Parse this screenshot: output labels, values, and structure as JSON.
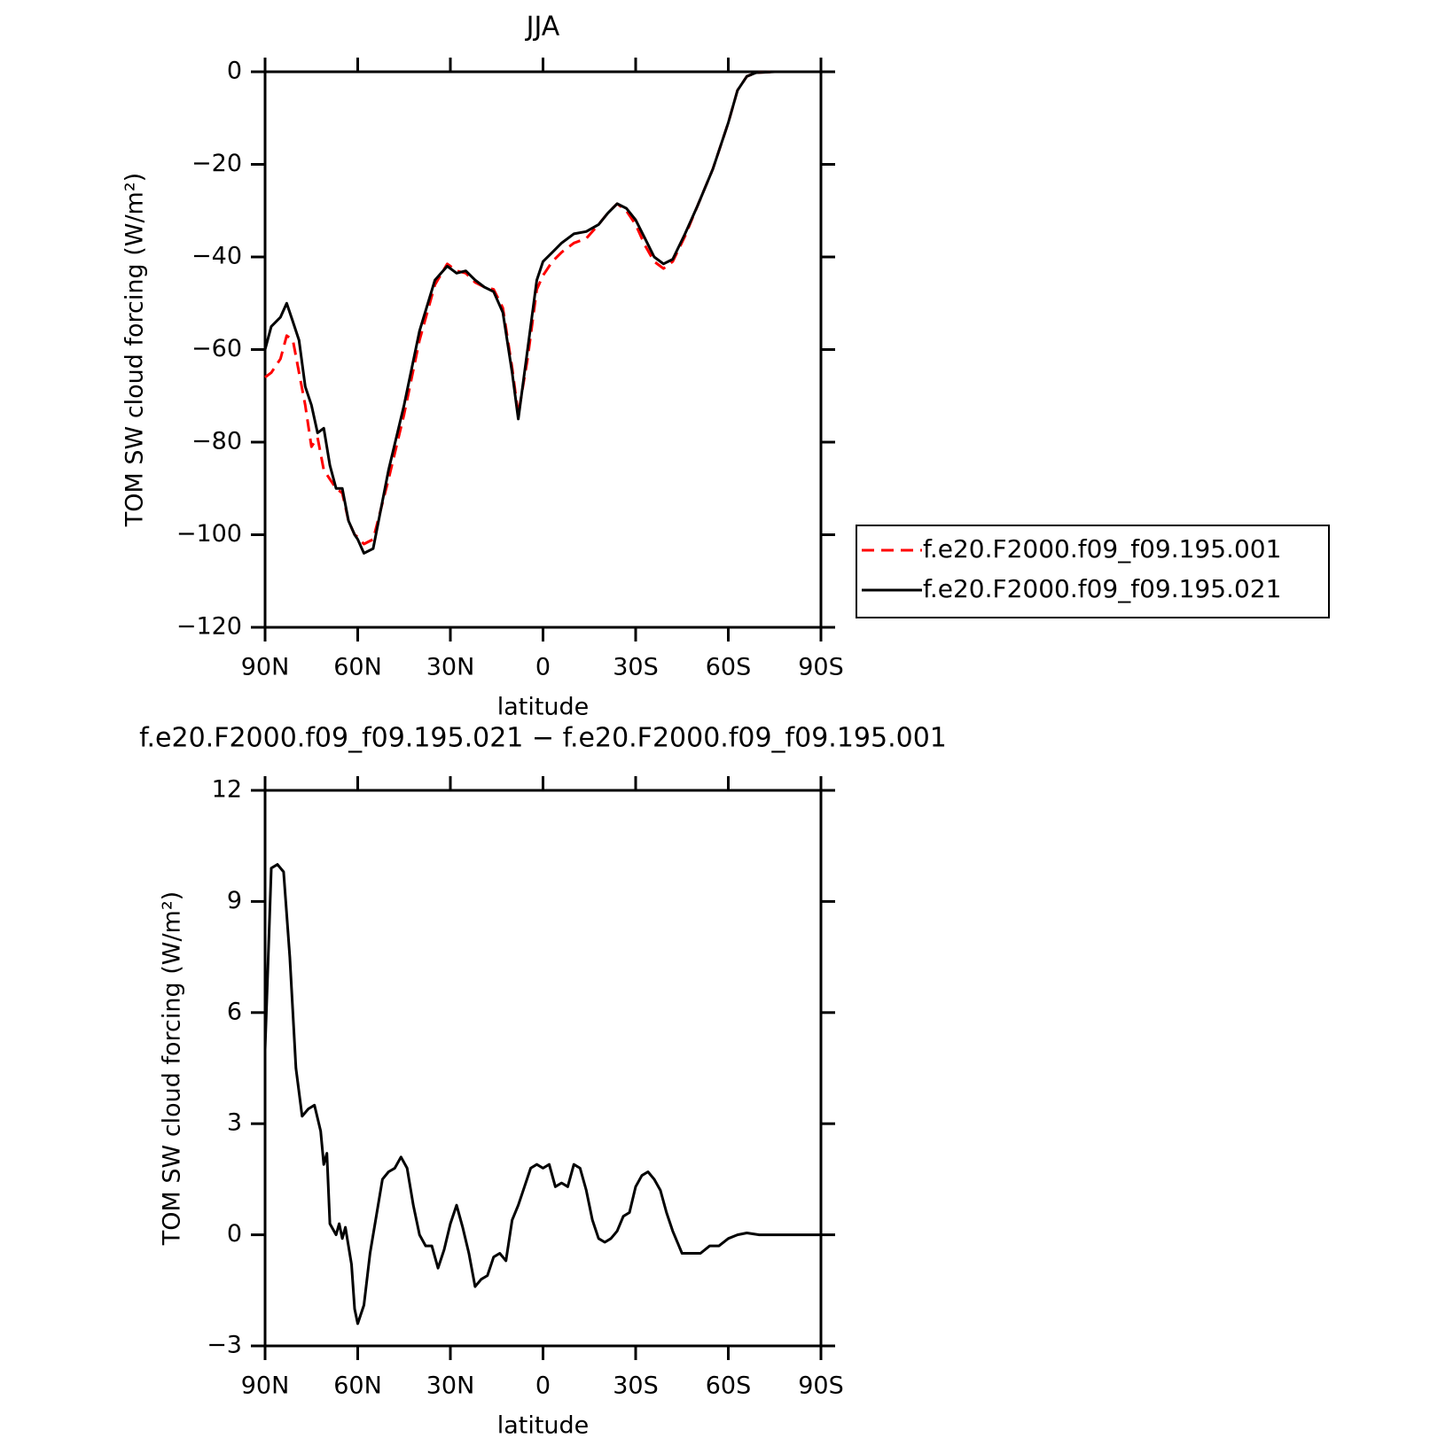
{
  "chart_data": [
    {
      "type": "line",
      "title": "JJA",
      "xlabel": "latitude",
      "ylabel": "TOM SW cloud forcing (W/m²)",
      "x": [
        90,
        88,
        85,
        83,
        81,
        79,
        77,
        75,
        73,
        71,
        69,
        67,
        65,
        63,
        61,
        60,
        58,
        55,
        50,
        45,
        40,
        35,
        31,
        28,
        25,
        22,
        19,
        16,
        13,
        10,
        8,
        5,
        2,
        0,
        -3,
        -6,
        -10,
        -14,
        -18,
        -21,
        -24,
        -27,
        -30,
        -33,
        -36,
        -39,
        -42,
        -46,
        -50,
        -55,
        -60,
        -63,
        -66,
        -69,
        -75,
        -80,
        -85,
        -90
      ],
      "series": [
        {
          "name": "f.e20.F2000.f09_f09.195.001",
          "color": "#ff0000",
          "linestyle": "dashed",
          "values": [
            -66,
            -65,
            -62,
            -57,
            -58,
            -65,
            -72,
            -81,
            -79,
            -86,
            -88,
            -90,
            -91,
            -97,
            -100,
            -100.5,
            -102,
            -101,
            -88,
            -74,
            -58,
            -46,
            -41.5,
            -43,
            -43.5,
            -45.5,
            -46.5,
            -47,
            -51,
            -64,
            -74,
            -62,
            -47,
            -44,
            -41,
            -39,
            -37,
            -36,
            -33,
            -30.5,
            -28.5,
            -30,
            -33,
            -37.5,
            -41,
            -42.5,
            -41,
            -35.5,
            -29,
            -21,
            -11,
            -4,
            -1,
            -0.2,
            0,
            0,
            0,
            0
          ]
        },
        {
          "name": "f.e20.F2000.f09_f09.195.021",
          "color": "#000000",
          "linestyle": "solid",
          "values": [
            -60,
            -55,
            -53,
            -50,
            -54,
            -58,
            -68,
            -72,
            -78,
            -77,
            -85,
            -90,
            -90,
            -97,
            -100,
            -101,
            -104,
            -103,
            -86,
            -72,
            -56,
            -45,
            -42,
            -43.5,
            -43,
            -45,
            -46.5,
            -47.5,
            -52,
            -65,
            -75,
            -60,
            -45,
            -41,
            -39,
            -37,
            -35,
            -34.5,
            -33,
            -30.5,
            -28.5,
            -29.5,
            -32,
            -36,
            -40,
            -41.5,
            -40.5,
            -35,
            -29,
            -21,
            -11,
            -4,
            -1,
            -0.2,
            0,
            0,
            0,
            0
          ]
        }
      ],
      "xlim": [
        90,
        -90
      ],
      "xticks": [
        {
          "value": 90,
          "label": "90N"
        },
        {
          "value": 60,
          "label": "60N"
        },
        {
          "value": 30,
          "label": "30N"
        },
        0,
        {
          "value": -30,
          "label": "30S"
        },
        {
          "value": -60,
          "label": "60S"
        },
        {
          "value": -90,
          "label": "90S"
        }
      ],
      "ylim": [
        -120,
        0
      ],
      "yticks": [
        {
          "value": -120,
          "label": "−120"
        },
        {
          "value": -100,
          "label": "−100"
        },
        {
          "value": -80,
          "label": "−80"
        },
        {
          "value": -60,
          "label": "−60"
        },
        {
          "value": -40,
          "label": "−40"
        },
        {
          "value": -20,
          "label": "−20"
        },
        0
      ],
      "legend": "right"
    },
    {
      "type": "line",
      "title": "f.e20.F2000.f09_f09.195.021 − f.e20.F2000.f09_f09.195.001",
      "xlabel": "latitude",
      "ylabel": "TOM SW cloud forcing (W/m²)",
      "x": [
        90,
        88,
        86,
        84,
        82,
        80,
        78,
        76,
        74,
        72,
        71,
        70,
        69,
        67,
        66,
        65,
        64,
        62,
        61,
        60,
        58,
        56,
        54,
        52,
        50,
        48,
        46,
        44,
        42,
        40,
        38,
        36,
        34,
        32,
        30,
        28,
        26,
        24,
        22,
        20,
        18,
        16,
        14,
        12,
        10,
        8,
        6,
        4,
        2,
        0,
        -2,
        -4,
        -6,
        -8,
        -10,
        -12,
        -14,
        -16,
        -18,
        -20,
        -22,
        -24,
        -26,
        -28,
        -30,
        -32,
        -34,
        -36,
        -38,
        -40,
        -42,
        -45,
        -48,
        -51,
        -54,
        -57,
        -60,
        -63,
        -66,
        -70,
        -80,
        -90
      ],
      "series": [
        {
          "color": "#000000",
          "linestyle": "solid",
          "values": [
            5,
            9.9,
            10,
            9.8,
            7.5,
            4.5,
            3.2,
            3.4,
            3.5,
            2.8,
            1.9,
            2.2,
            0.3,
            0,
            0.3,
            -0.1,
            0.2,
            -0.8,
            -2,
            -2.4,
            -1.9,
            -0.5,
            0.5,
            1.5,
            1.7,
            1.8,
            2.1,
            1.8,
            0.8,
            0,
            -0.3,
            -0.3,
            -0.9,
            -0.4,
            0.3,
            0.8,
            0.2,
            -0.5,
            -1.4,
            -1.2,
            -1.1,
            -0.6,
            -0.5,
            -0.7,
            0.4,
            0.8,
            1.3,
            1.8,
            1.9,
            1.8,
            1.9,
            1.3,
            1.4,
            1.3,
            1.9,
            1.8,
            1.2,
            0.4,
            -0.1,
            -0.2,
            -0.1,
            0.1,
            0.5,
            0.6,
            1.3,
            1.6,
            1.7,
            1.5,
            1.2,
            0.6,
            0.1,
            -0.5,
            -0.5,
            -0.5,
            -0.3,
            -0.3,
            -0.1,
            0,
            0.05,
            0,
            0,
            0
          ]
        }
      ],
      "xlim": [
        90,
        -90
      ],
      "xticks": [
        {
          "value": 90,
          "label": "90N"
        },
        {
          "value": 60,
          "label": "60N"
        },
        {
          "value": 30,
          "label": "30N"
        },
        0,
        {
          "value": -30,
          "label": "30S"
        },
        {
          "value": -60,
          "label": "60S"
        },
        {
          "value": -90,
          "label": "90S"
        }
      ],
      "ylim": [
        -3,
        12
      ],
      "yticks": [
        {
          "value": -3,
          "label": "−3"
        },
        0,
        3,
        6,
        9,
        12
      ]
    }
  ]
}
